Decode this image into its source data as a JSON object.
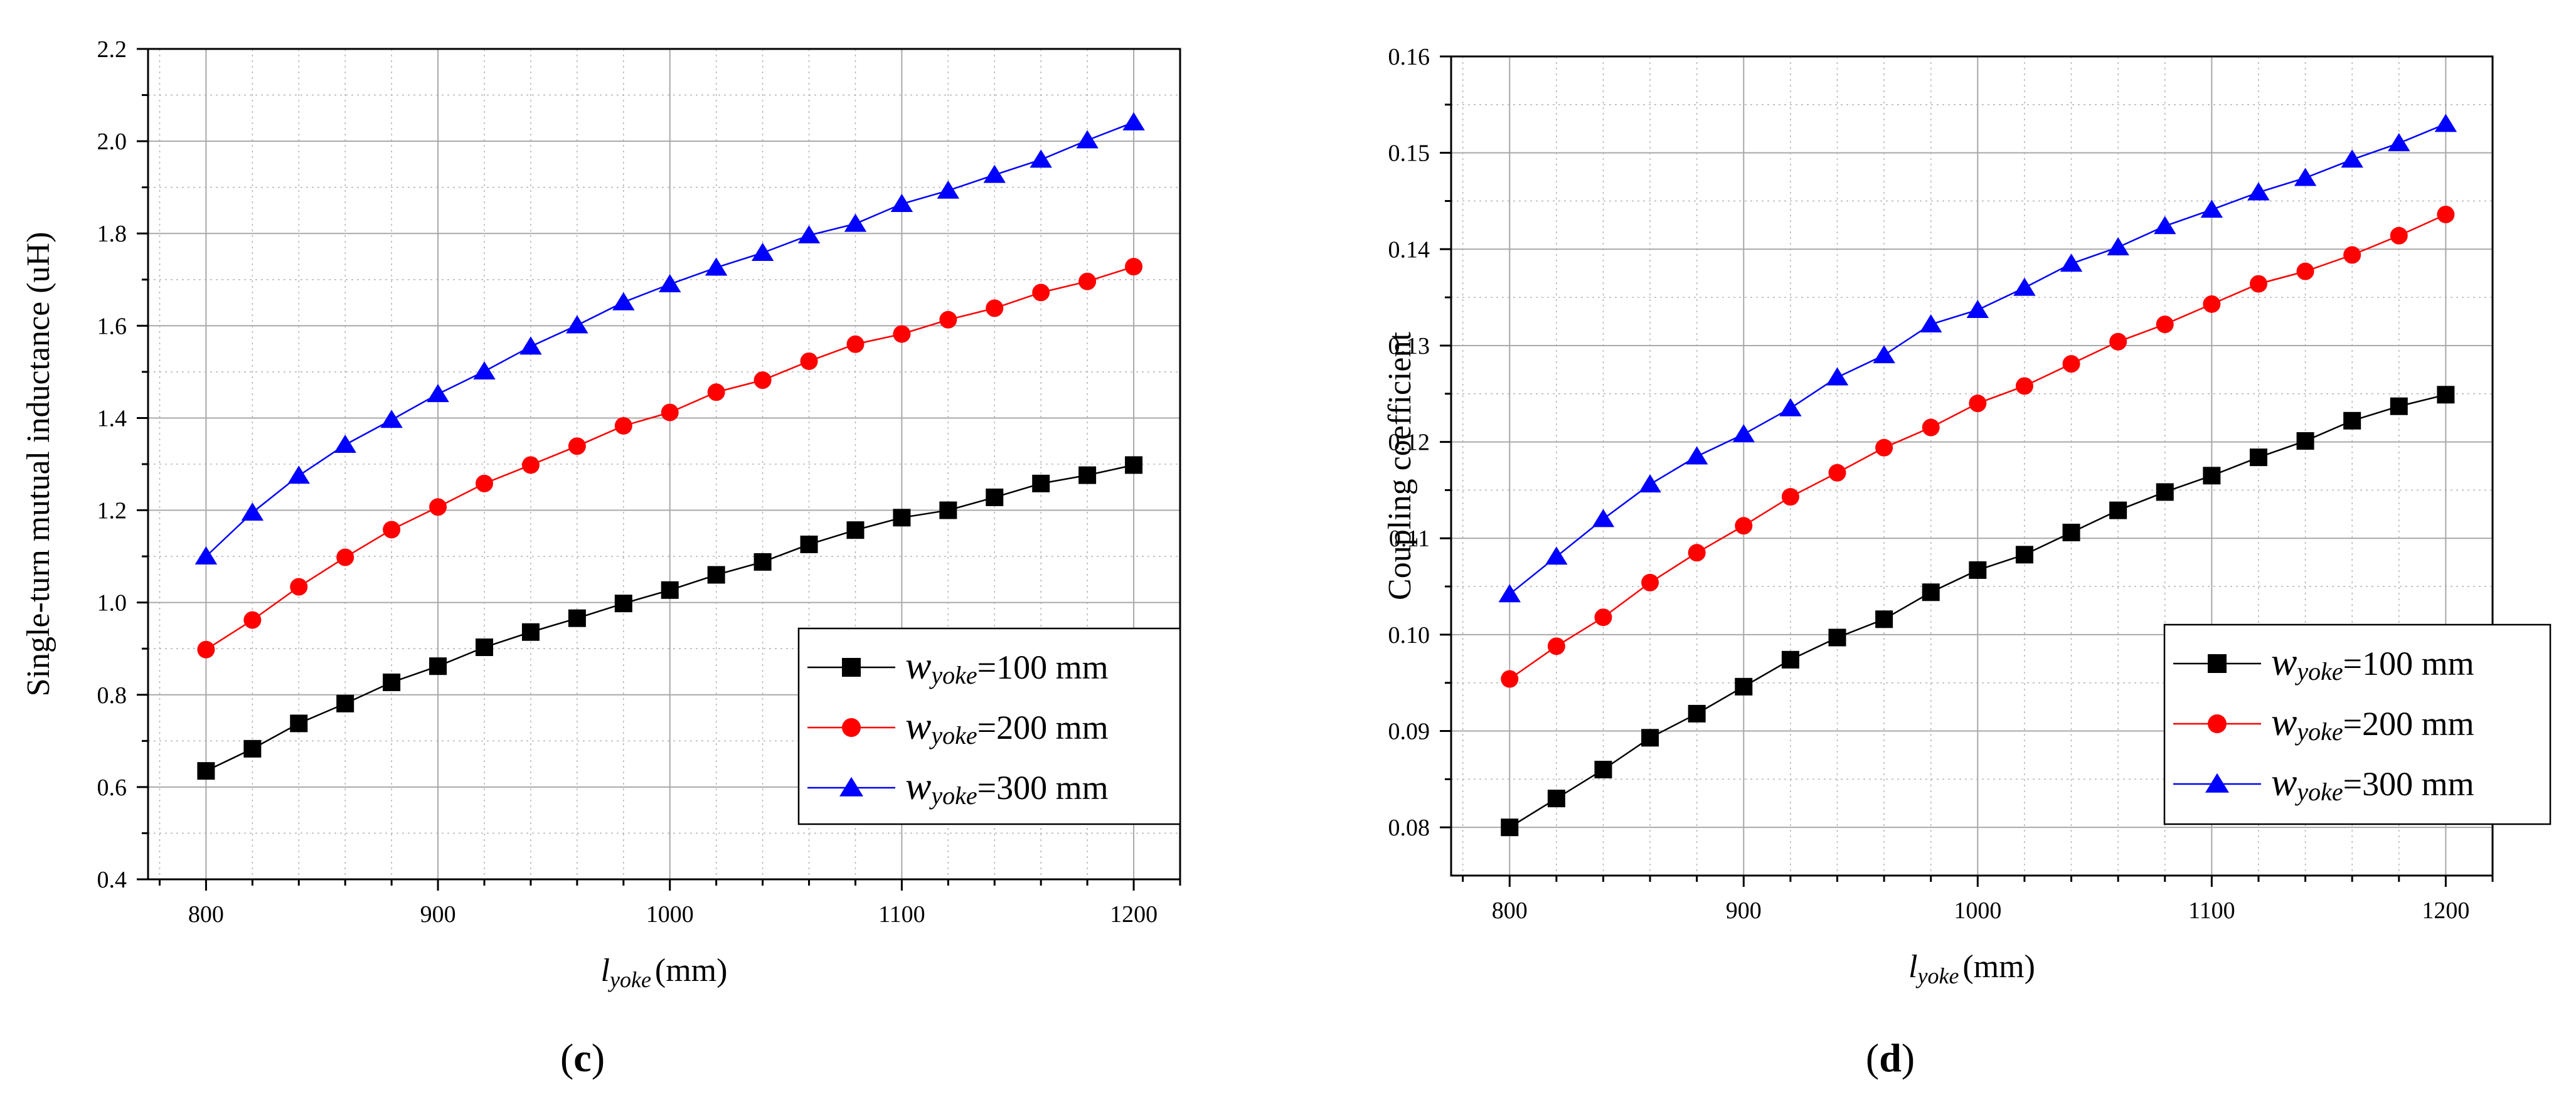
{
  "chart_data": [
    {
      "type": "line",
      "panel_label": "c",
      "title": "",
      "xlabel": "l",
      "xlabel_sub": "yoke",
      "xlabel_unit": "(mm)",
      "ylabel": "Single-turn mutual inductance (uH)",
      "xlim": [
        775,
        1220
      ],
      "ylim": [
        0.4,
        2.2
      ],
      "x_ticks": [
        800,
        900,
        1000,
        1100,
        1200
      ],
      "y_ticks": [
        0.4,
        0.6,
        0.8,
        1.0,
        1.2,
        1.4,
        1.6,
        1.8,
        2.0,
        2.2
      ],
      "y_tick_labels": [
        "0.4",
        "0.6",
        "0.8",
        "1.0",
        "1.2",
        "1.4",
        "1.6",
        "1.8",
        "2.0",
        "2.2"
      ],
      "grid": true,
      "legend_position": "bottom-right",
      "x": [
        800,
        820,
        840,
        860,
        880,
        900,
        920,
        940,
        960,
        980,
        1000,
        1020,
        1040,
        1060,
        1080,
        1100,
        1120,
        1140,
        1160,
        1180,
        1200
      ],
      "series": [
        {
          "legend_prefix": "w",
          "legend_sub": "yoke",
          "legend_suffix": "=100 mm",
          "color": "#000000",
          "marker": "square",
          "values": [
            0.635,
            0.683,
            0.738,
            0.781,
            0.827,
            0.862,
            0.903,
            0.936,
            0.966,
            0.998,
            1.027,
            1.06,
            1.088,
            1.126,
            1.157,
            1.184,
            1.2,
            1.228,
            1.258,
            1.276,
            1.298
          ]
        },
        {
          "legend_prefix": "w",
          "legend_sub": "yoke",
          "legend_suffix": "=200 mm",
          "color": "#ff0000",
          "marker": "circle",
          "values": [
            0.898,
            0.962,
            1.034,
            1.098,
            1.158,
            1.207,
            1.258,
            1.298,
            1.339,
            1.383,
            1.412,
            1.456,
            1.482,
            1.523,
            1.56,
            1.582,
            1.613,
            1.638,
            1.672,
            1.696,
            1.728
          ]
        },
        {
          "legend_prefix": "w",
          "legend_sub": "yoke",
          "legend_suffix": "=300 mm",
          "color": "#0000ff",
          "marker": "triangle",
          "values": [
            1.1,
            1.195,
            1.275,
            1.342,
            1.396,
            1.452,
            1.501,
            1.555,
            1.601,
            1.651,
            1.69,
            1.726,
            1.758,
            1.796,
            1.821,
            1.864,
            1.893,
            1.927,
            1.96,
            2.002,
            2.041
          ]
        }
      ]
    },
    {
      "type": "line",
      "panel_label": "d",
      "title": "",
      "xlabel": "l",
      "xlabel_sub": "yoke",
      "xlabel_unit": "(mm)",
      "ylabel": "Coupling coefficient",
      "xlim": [
        775,
        1220
      ],
      "ylim": [
        0.075,
        0.16
      ],
      "x_ticks": [
        800,
        900,
        1000,
        1100,
        1200
      ],
      "y_ticks": [
        0.08,
        0.09,
        0.1,
        0.11,
        0.12,
        0.13,
        0.14,
        0.15,
        0.16
      ],
      "y_tick_labels": [
        "0.08",
        "0.09",
        "0.10",
        "0.11",
        "0.12",
        "0.13",
        "0.14",
        "0.15",
        "0.16"
      ],
      "grid": true,
      "legend_position": "bottom-right",
      "x": [
        800,
        820,
        840,
        860,
        880,
        900,
        920,
        940,
        960,
        980,
        1000,
        1020,
        1040,
        1060,
        1080,
        1100,
        1120,
        1140,
        1160,
        1180,
        1200
      ],
      "series": [
        {
          "legend_prefix": "w",
          "legend_sub": "yoke",
          "legend_suffix": "=100 mm",
          "color": "#000000",
          "marker": "square",
          "values": [
            0.08,
            0.083,
            0.086,
            0.0893,
            0.0918,
            0.0946,
            0.0974,
            0.0997,
            0.1016,
            0.1044,
            0.1067,
            0.1083,
            0.1106,
            0.1129,
            0.1148,
            0.1165,
            0.1184,
            0.1201,
            0.1222,
            0.1237,
            0.1249
          ]
        },
        {
          "legend_prefix": "w",
          "legend_sub": "yoke",
          "legend_suffix": "=200 mm",
          "color": "#ff0000",
          "marker": "circle",
          "values": [
            0.0954,
            0.0988,
            0.1018,
            0.1054,
            0.1085,
            0.1113,
            0.1143,
            0.1168,
            0.1194,
            0.1215,
            0.124,
            0.1258,
            0.1281,
            0.1304,
            0.1322,
            0.1343,
            0.1364,
            0.1377,
            0.1394,
            0.1414,
            0.1436
          ]
        },
        {
          "legend_prefix": "w",
          "legend_sub": "yoke",
          "legend_suffix": "=300 mm",
          "color": "#0000ff",
          "marker": "triangle",
          "values": [
            0.1042,
            0.1081,
            0.112,
            0.1156,
            0.1185,
            0.1208,
            0.1235,
            0.1267,
            0.129,
            0.1322,
            0.1337,
            0.136,
            0.1385,
            0.1402,
            0.1424,
            0.1441,
            0.1459,
            0.1474,
            0.1493,
            0.151,
            0.153
          ]
        }
      ]
    }
  ]
}
